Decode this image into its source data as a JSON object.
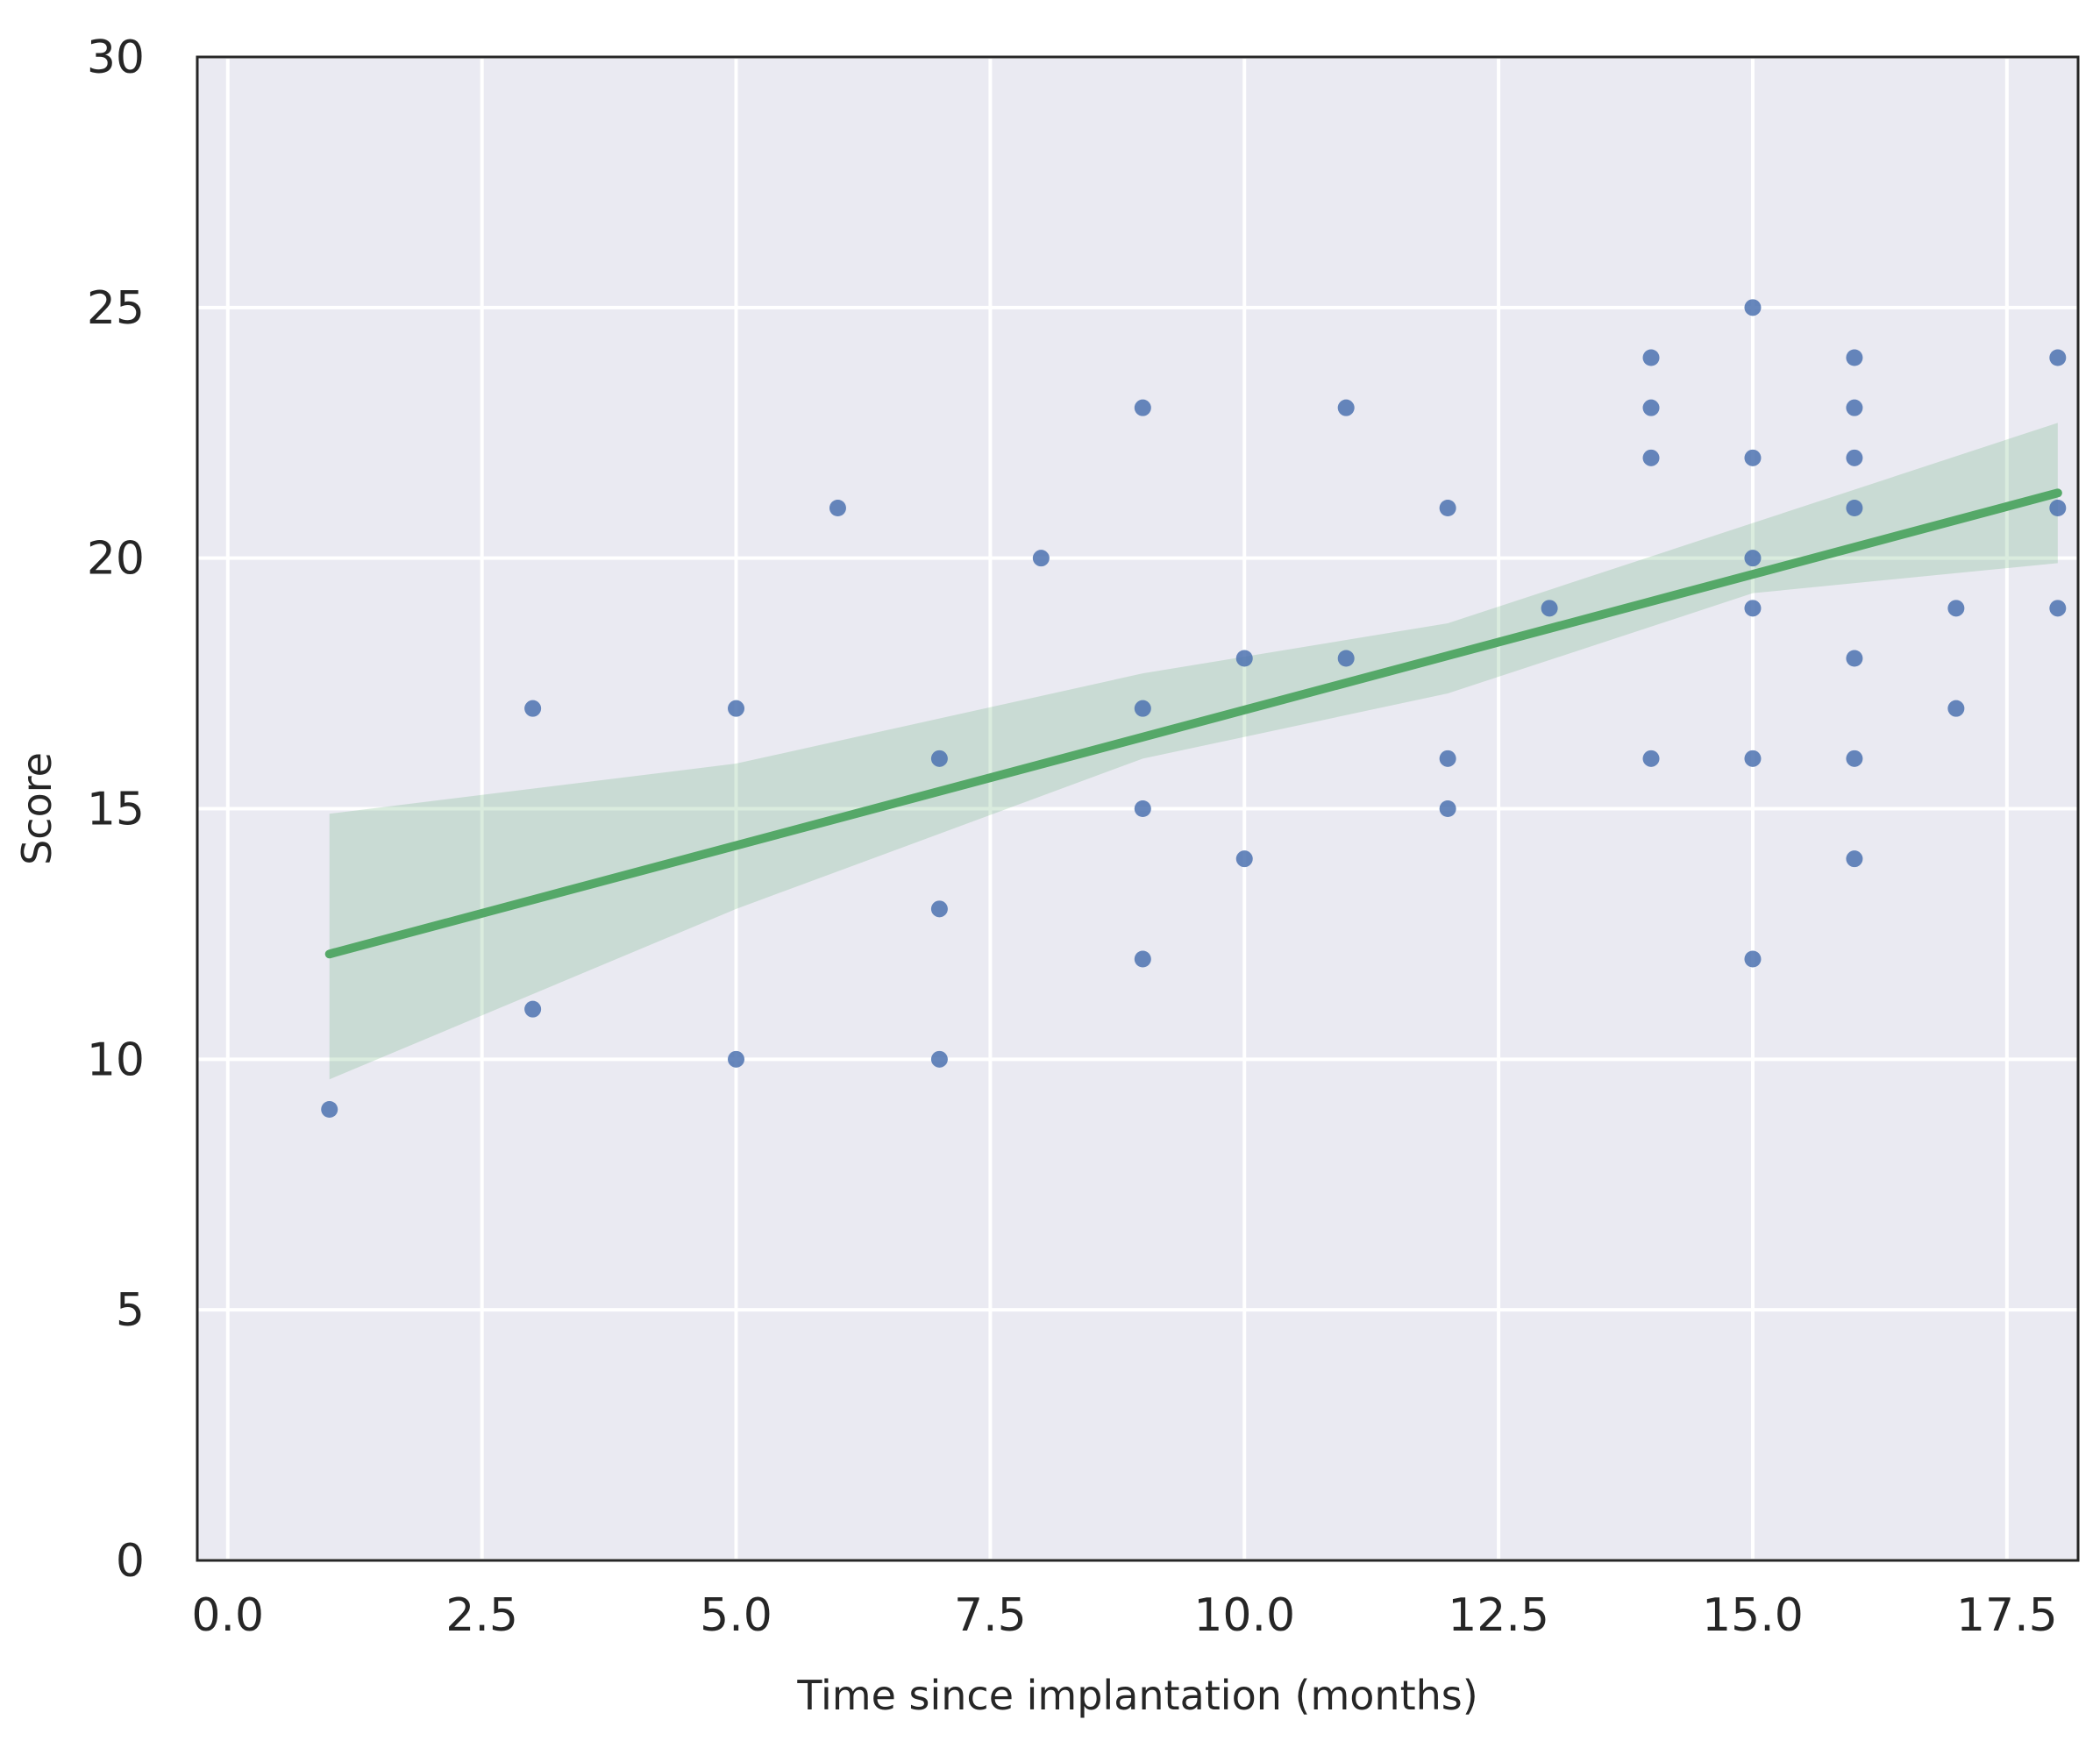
{
  "chart_data": {
    "type": "scatter",
    "xlabel": "Time since implantation (months)",
    "ylabel": "Score",
    "xlim": [
      -0.3,
      18.2
    ],
    "ylim": [
      0,
      30
    ],
    "xticks": [
      "0.0",
      "2.5",
      "5.0",
      "7.5",
      "10.0",
      "12.5",
      "15.0",
      "17.5"
    ],
    "yticks": [
      "0",
      "5",
      "10",
      "15",
      "20",
      "25",
      "30"
    ],
    "grid": true,
    "points": [
      [
        1,
        9
      ],
      [
        3,
        17
      ],
      [
        3,
        11
      ],
      [
        5,
        17
      ],
      [
        5,
        10
      ],
      [
        6,
        21
      ],
      [
        7,
        16
      ],
      [
        7,
        13
      ],
      [
        7,
        10
      ],
      [
        8,
        20
      ],
      [
        9,
        23
      ],
      [
        9,
        17
      ],
      [
        9,
        15
      ],
      [
        9,
        12
      ],
      [
        10,
        18
      ],
      [
        10,
        14
      ],
      [
        11,
        23
      ],
      [
        11,
        18
      ],
      [
        12,
        21
      ],
      [
        12,
        16
      ],
      [
        12,
        15
      ],
      [
        13,
        19
      ],
      [
        14,
        24
      ],
      [
        14,
        23
      ],
      [
        14,
        22
      ],
      [
        14,
        16
      ],
      [
        15,
        25
      ],
      [
        15,
        22
      ],
      [
        15,
        20
      ],
      [
        15,
        19
      ],
      [
        15,
        16
      ],
      [
        15,
        12
      ],
      [
        16,
        24
      ],
      [
        16,
        23
      ],
      [
        16,
        22
      ],
      [
        16,
        21
      ],
      [
        16,
        18
      ],
      [
        16,
        16
      ],
      [
        16,
        14
      ],
      [
        17,
        19
      ],
      [
        17,
        17
      ],
      [
        18,
        24
      ],
      [
        18,
        21
      ],
      [
        18,
        19
      ]
    ],
    "regression": {
      "x_range": [
        1,
        18
      ],
      "y_at_x_min": 12.1,
      "y_at_x_max": 21.3,
      "ci_lower": [
        [
          1,
          9.6
        ],
        [
          5,
          13.0
        ],
        [
          9,
          16.0
        ],
        [
          12,
          17.3
        ],
        [
          15,
          19.3
        ],
        [
          18,
          19.9
        ]
      ],
      "ci_upper": [
        [
          1,
          14.9
        ],
        [
          5,
          15.9
        ],
        [
          9,
          17.7
        ],
        [
          12,
          18.7
        ],
        [
          15,
          20.7
        ],
        [
          18,
          22.7
        ]
      ]
    },
    "colors": {
      "background": "#eaeaf2",
      "grid": "#ffffff",
      "points": "#4c72b0",
      "line": "#55a868",
      "band": "#55a868",
      "frame": "#262626"
    }
  }
}
